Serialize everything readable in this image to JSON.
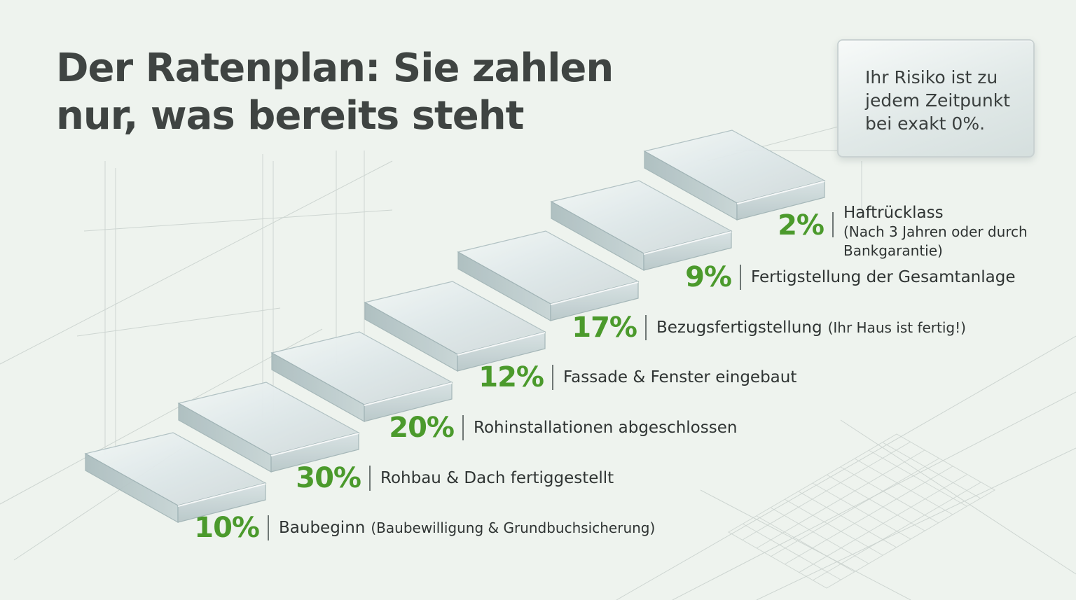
{
  "title": {
    "line1": "Der Ratenplan: Sie zahlen",
    "line2": "nur, was bereits steht"
  },
  "risk_box": {
    "line1": "Ihr Risiko ist zu",
    "line2": "jedem Zeitpunkt",
    "line3": "bei exakt 0%."
  },
  "colors": {
    "accent_green": "#4b9a2c",
    "title_text": "#3f4442",
    "background": "#eef3ee",
    "glass": "#d8e3e4"
  },
  "steps": [
    {
      "percent": "10%",
      "label": "Baubeginn",
      "note": "(Baubewilligung & Grundbuchsicherung)"
    },
    {
      "percent": "30%",
      "label": "Rohbau & Dach fertiggestellt",
      "note": ""
    },
    {
      "percent": "20%",
      "label": "Rohinstallationen abgeschlossen",
      "note": ""
    },
    {
      "percent": "12%",
      "label": "Fassade & Fenster eingebaut",
      "note": ""
    },
    {
      "percent": "17%",
      "label": "Bezugsfertigstellung",
      "note": "(Ihr Haus ist fertig!)"
    },
    {
      "percent": "9%",
      "label": "Fertigstellung der Gesamtanlage",
      "note": ""
    },
    {
      "percent": "2%",
      "label": "Haftrücklass",
      "note_line1": "(Nach 3 Jahren oder durch",
      "note_line2": "Bankgarantie)"
    }
  ]
}
